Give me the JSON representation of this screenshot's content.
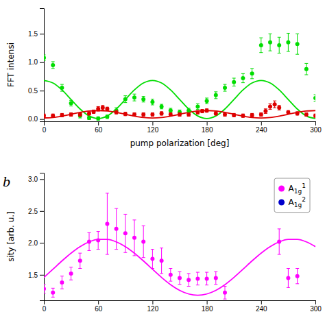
{
  "chart_data": [
    {
      "type": "scatter",
      "ylabel": "FFT intensi",
      "xlabel": "pump polarization [deg]",
      "xlim": [
        0,
        300
      ],
      "ylim": [
        -0.04,
        1.95
      ],
      "xticks": [
        0,
        60,
        120,
        180,
        240,
        300
      ],
      "yticks": [
        {
          "value": 0,
          "label": "0.0"
        },
        0.5,
        {
          "value": 1,
          "label": "1.0"
        },
        1.5
      ],
      "grid": false,
      "series": [
        {
          "type": "line",
          "color": "#00dd00",
          "x": [
            0,
            10,
            20,
            30,
            40,
            50,
            60,
            70,
            80,
            90,
            100,
            110,
            120,
            130,
            140,
            150,
            160,
            170,
            180,
            190,
            200,
            210,
            220,
            230,
            240,
            250,
            260,
            270,
            280,
            290,
            300
          ],
          "values": [
            0.68,
            0.6351,
            0.5125,
            0.345,
            0.1775,
            0.0549,
            0.01,
            0.0549,
            0.1775,
            0.345,
            0.5125,
            0.6351,
            0.68,
            0.6351,
            0.5125,
            0.345,
            0.1775,
            0.0549,
            0.01,
            0.0549,
            0.1775,
            0.345,
            0.5125,
            0.6351,
            0.68,
            0.6351,
            0.5125,
            0.345,
            0.1775,
            0.0549,
            0.01
          ]
        },
        {
          "type": "line",
          "color": "#dd0000",
          "x": [
            0,
            10,
            20,
            30,
            40,
            50,
            60,
            70,
            80,
            90,
            100,
            110,
            120,
            130,
            140,
            150,
            160,
            170,
            180,
            190,
            200,
            210,
            220,
            230,
            240,
            250,
            260,
            270,
            280,
            290,
            300
          ],
          "values": [
            0.02,
            0.0287,
            0.0525,
            0.085,
            0.1175,
            0.1413,
            0.15,
            0.1413,
            0.1175,
            0.085,
            0.0525,
            0.0287,
            0.02,
            0.0287,
            0.0525,
            0.085,
            0.1175,
            0.1413,
            0.15,
            0.1413,
            0.1175,
            0.085,
            0.0525,
            0.0287,
            0.02,
            0.0287,
            0.0525,
            0.085,
            0.1175,
            0.1413,
            0.15
          ]
        },
        {
          "type": "scatter",
          "color": "#00dd00",
          "x": [
            0,
            10,
            20,
            30,
            40,
            50,
            60,
            70,
            80,
            90,
            100,
            110,
            120,
            130,
            140,
            150,
            160,
            170,
            180,
            190,
            200,
            210,
            220,
            230,
            240,
            250,
            260,
            270,
            280,
            290,
            300
          ],
          "values": [
            1.08,
            0.95,
            0.55,
            0.28,
            0.06,
            0.02,
            0.01,
            0.04,
            0.15,
            0.35,
            0.38,
            0.35,
            0.3,
            0.22,
            0.15,
            0.12,
            0.15,
            0.22,
            0.32,
            0.42,
            0.55,
            0.65,
            0.72,
            0.8,
            1.3,
            1.35,
            1.3,
            1.35,
            1.32,
            0.88,
            0.37
          ],
          "errors": [
            0.05,
            0.06,
            0.06,
            0.05,
            0.04,
            0.03,
            0.03,
            0.03,
            0.05,
            0.06,
            0.06,
            0.05,
            0.05,
            0.04,
            0.04,
            0.04,
            0.04,
            0.05,
            0.05,
            0.06,
            0.06,
            0.07,
            0.08,
            0.09,
            0.13,
            0.15,
            0.14,
            0.16,
            0.18,
            0.1,
            0.06
          ]
        },
        {
          "type": "scatter",
          "color": "#dd0000",
          "x": [
            0,
            10,
            20,
            30,
            40,
            50,
            55,
            60,
            65,
            70,
            80,
            90,
            100,
            110,
            120,
            130,
            140,
            150,
            160,
            170,
            175,
            180,
            190,
            200,
            210,
            220,
            230,
            240,
            245,
            250,
            255,
            260,
            270,
            280,
            290,
            300
          ],
          "values": [
            0.06,
            0.06,
            0.07,
            0.08,
            0.08,
            0.1,
            0.13,
            0.18,
            0.2,
            0.18,
            0.12,
            0.09,
            0.08,
            0.08,
            0.08,
            0.1,
            0.08,
            0.08,
            0.08,
            0.12,
            0.14,
            0.15,
            0.1,
            0.08,
            0.07,
            0.06,
            0.07,
            0.08,
            0.14,
            0.22,
            0.26,
            0.2,
            0.12,
            0.1,
            0.08,
            0.06
          ],
          "errors": [
            0.03,
            0.03,
            0.03,
            0.03,
            0.03,
            0.03,
            0.03,
            0.04,
            0.04,
            0.03,
            0.03,
            0.03,
            0.03,
            0.03,
            0.03,
            0.03,
            0.03,
            0.03,
            0.03,
            0.03,
            0.03,
            0.03,
            0.03,
            0.03,
            0.03,
            0.03,
            0.03,
            0.03,
            0.04,
            0.05,
            0.06,
            0.04,
            0.03,
            0.03,
            0.03,
            0.03
          ]
        }
      ]
    },
    {
      "type": "scatter",
      "ylabel": "sity [arb. u.]",
      "xlim": [
        0,
        300
      ],
      "ylim": [
        1.1,
        3.1
      ],
      "xticks": [
        0,
        60,
        120,
        180,
        240,
        300
      ],
      "yticks": [
        1.5,
        {
          "value": 2,
          "label": "2.0"
        },
        2.5,
        {
          "value": 3,
          "label": "3.0"
        }
      ],
      "grid": false,
      "legend": "upper right",
      "annotations": [
        {
          "text": "b"
        }
      ],
      "series": [
        {
          "type": "line",
          "color": "#ff00ff",
          "x": [
            0,
            10,
            20,
            30,
            40,
            50,
            60,
            70,
            80,
            90,
            100,
            110,
            120,
            130,
            140,
            150,
            160,
            170,
            180,
            190,
            200,
            210,
            220,
            230,
            240,
            250,
            260,
            270,
            280,
            290,
            300
          ],
          "values": [
            1.4592,
            1.5871,
            1.7179,
            1.84,
            1.9425,
            2.0164,
            2.0551,
            2.0551,
            2.0164,
            1.9425,
            1.84,
            1.7179,
            1.5871,
            1.4592,
            1.3457,
            1.2565,
            1.1995,
            1.18,
            1.1995,
            1.2565,
            1.3457,
            1.4592,
            1.5871,
            1.7179,
            1.84,
            1.9425,
            2.0164,
            2.0551,
            2.0551,
            2.0164,
            1.9425
          ]
        },
        {
          "type": "scatter",
          "name": "A1g1",
          "color": "#ff00ff",
          "x": [
            0,
            10,
            20,
            30,
            40,
            50,
            60,
            70,
            80,
            90,
            100,
            110,
            120,
            130,
            140,
            150,
            160,
            170,
            180,
            190,
            200,
            260,
            270,
            280
          ],
          "values": [
            1.28,
            1.22,
            1.38,
            1.52,
            1.72,
            2.02,
            2.04,
            2.3,
            2.22,
            2.15,
            2.08,
            2.02,
            1.75,
            1.72,
            1.5,
            1.45,
            1.42,
            1.44,
            1.44,
            1.45,
            1.22,
            2.02,
            1.45,
            1.48
          ],
          "errors": [
            0.07,
            0.07,
            0.1,
            0.1,
            0.12,
            0.14,
            0.14,
            0.48,
            0.32,
            0.3,
            0.28,
            0.25,
            0.15,
            0.2,
            0.1,
            0.1,
            0.1,
            0.1,
            0.1,
            0.1,
            0.1,
            0.2,
            0.15,
            0.12
          ]
        },
        {
          "type": "scatter",
          "name": "A1g2",
          "color": "#0000cc",
          "x": [],
          "values": []
        }
      ]
    }
  ]
}
